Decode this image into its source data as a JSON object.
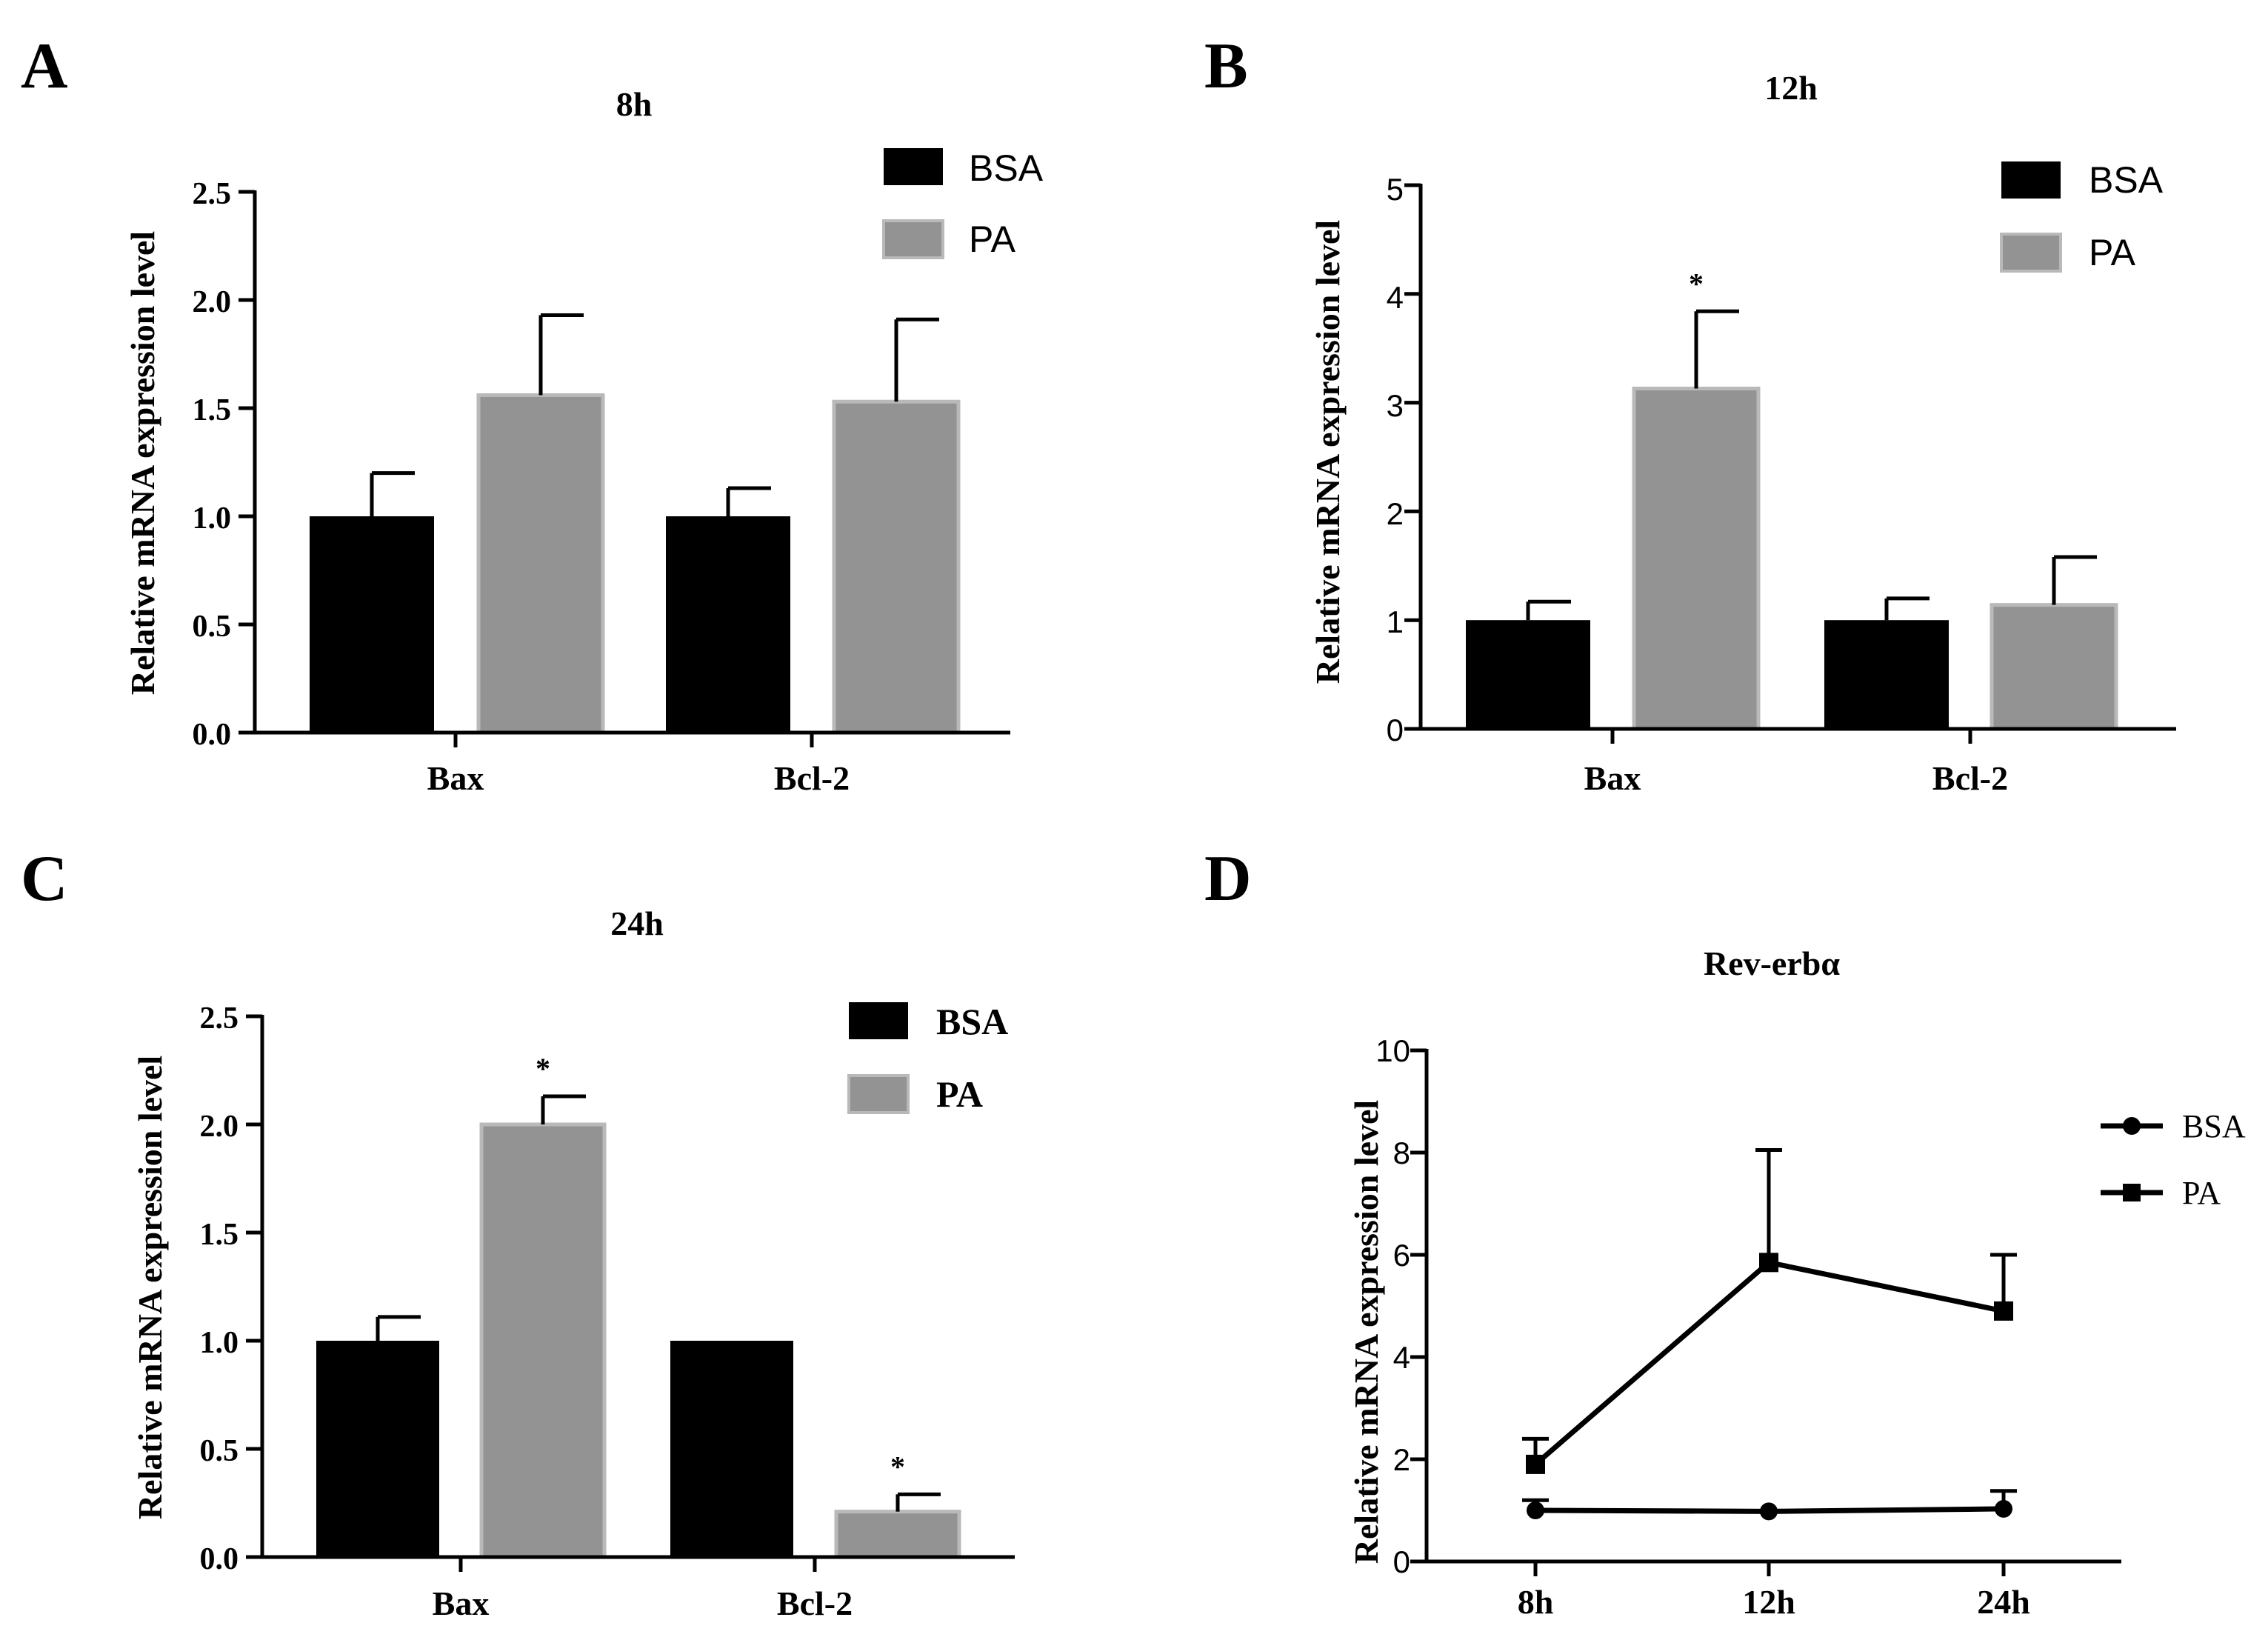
{
  "figure": {
    "panels": [
      "A",
      "B",
      "C",
      "D"
    ]
  },
  "colors": {
    "bsa": "#000000",
    "pa": "#939393",
    "pa_edge": "#b9b9b9",
    "axis": "#000000"
  },
  "chart_data": [
    {
      "id": "A",
      "type": "bar",
      "title": "8h",
      "ylabel": "Relative mRNA expression level",
      "xlabel": "",
      "categories": [
        "Bax",
        "Bcl-2"
      ],
      "ylim": [
        0,
        2.5
      ],
      "yticks": [
        "0.0",
        "0.5",
        "1.0",
        "1.5",
        "2.0",
        "2.5"
      ],
      "ytick_values": [
        0,
        0.5,
        1.0,
        1.5,
        2.0,
        2.5
      ],
      "series": [
        {
          "name": "BSA",
          "values": [
            1.0,
            1.0
          ],
          "errors": [
            0.2,
            0.13
          ],
          "significant": [
            false,
            false
          ]
        },
        {
          "name": "PA",
          "values": [
            1.56,
            1.53
          ],
          "errors": [
            0.37,
            0.38
          ],
          "significant": [
            false,
            false
          ]
        }
      ],
      "legend": {
        "entries": [
          "BSA",
          "PA"
        ],
        "position": "top-right"
      }
    },
    {
      "id": "B",
      "type": "bar",
      "title": "12h",
      "ylabel": "Relative mRNA expression level",
      "xlabel": "",
      "categories": [
        "Bax",
        "Bcl-2"
      ],
      "ylim": [
        0,
        5
      ],
      "yticks": [
        "0",
        "1",
        "2",
        "3",
        "4",
        "5"
      ],
      "ytick_values": [
        0,
        1,
        2,
        3,
        4,
        5
      ],
      "series": [
        {
          "name": "BSA",
          "values": [
            1.0,
            1.0
          ],
          "errors": [
            0.17,
            0.2
          ],
          "significant": [
            false,
            false
          ]
        },
        {
          "name": "PA",
          "values": [
            3.13,
            1.14
          ],
          "errors": [
            0.71,
            0.44
          ],
          "significant": [
            true,
            false
          ]
        }
      ],
      "legend": {
        "entries": [
          "BSA",
          "PA"
        ],
        "position": "top-right"
      }
    },
    {
      "id": "C",
      "type": "bar",
      "title": "24h",
      "ylabel": "Relative mRNA expression level",
      "xlabel": "",
      "categories": [
        "Bax",
        "Bcl-2"
      ],
      "ylim": [
        0,
        2.5
      ],
      "yticks": [
        "0.0",
        "0.5",
        "1.0",
        "1.5",
        "2.0",
        "2.5"
      ],
      "ytick_values": [
        0,
        0.5,
        1.0,
        1.5,
        2.0,
        2.5
      ],
      "series": [
        {
          "name": "BSA",
          "values": [
            1.0,
            1.0
          ],
          "errors": [
            0.11,
            0.0
          ],
          "significant": [
            false,
            false
          ]
        },
        {
          "name": "PA",
          "values": [
            2.0,
            0.21
          ],
          "errors": [
            0.13,
            0.08
          ],
          "significant": [
            true,
            true
          ]
        }
      ],
      "legend": {
        "entries": [
          "BSA",
          "PA"
        ],
        "position": "top-right"
      }
    },
    {
      "id": "D",
      "type": "line",
      "title": "Rev-erbα",
      "ylabel": "Relative mRNA expression level",
      "xlabel": "",
      "categories": [
        "8h",
        "12h",
        "24h"
      ],
      "ylim": [
        0,
        10
      ],
      "yticks": [
        "0",
        "2",
        "4",
        "6",
        "8",
        "10"
      ],
      "ytick_values": [
        0,
        2,
        4,
        6,
        8,
        10
      ],
      "series": [
        {
          "name": "BSA",
          "marker": "circle",
          "values": [
            1.0,
            0.98,
            1.03
          ],
          "errors": [
            0.2,
            0.0,
            0.35
          ]
        },
        {
          "name": "PA",
          "marker": "square",
          "values": [
            1.9,
            5.85,
            4.9
          ],
          "errors": [
            0.5,
            2.2,
            1.1
          ]
        }
      ],
      "legend": {
        "entries": [
          "BSA",
          "PA"
        ],
        "position": "right"
      }
    }
  ]
}
